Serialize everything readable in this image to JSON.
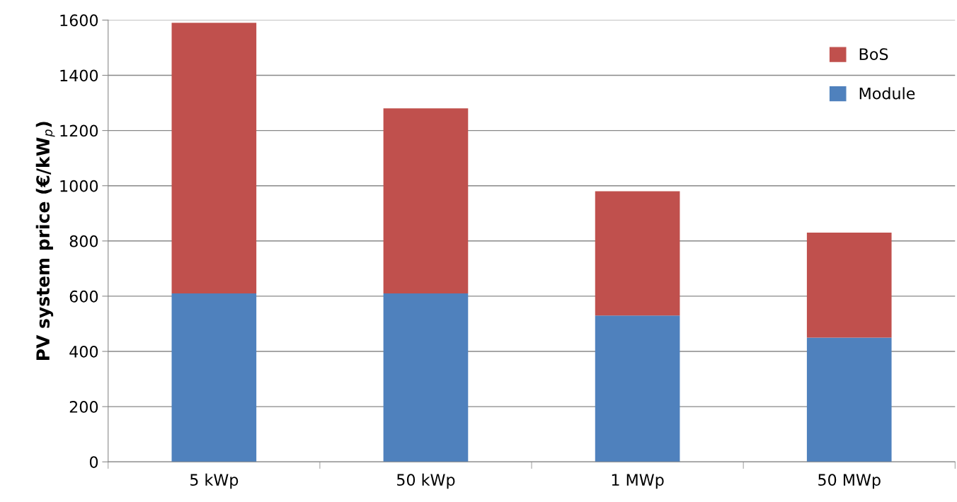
{
  "chart_data": {
    "type": "bar",
    "stacked": true,
    "ylabel": "PV system price (€/kW$_{p}$)",
    "categories": [
      "5 kWp",
      "50 kWp",
      "1 MWp",
      "50 MWp"
    ],
    "series": [
      {
        "name": "Module",
        "color": "#4f81bd",
        "values": [
          610,
          610,
          530,
          450
        ]
      },
      {
        "name": "BoS",
        "color": "#c0504d",
        "values": [
          980,
          670,
          450,
          380
        ]
      }
    ],
    "ylim": [
      0,
      1600
    ],
    "yticks": [
      0,
      200,
      400,
      600,
      800,
      1000,
      1200,
      1400,
      1600
    ],
    "grid": "y",
    "legend": "top right"
  }
}
